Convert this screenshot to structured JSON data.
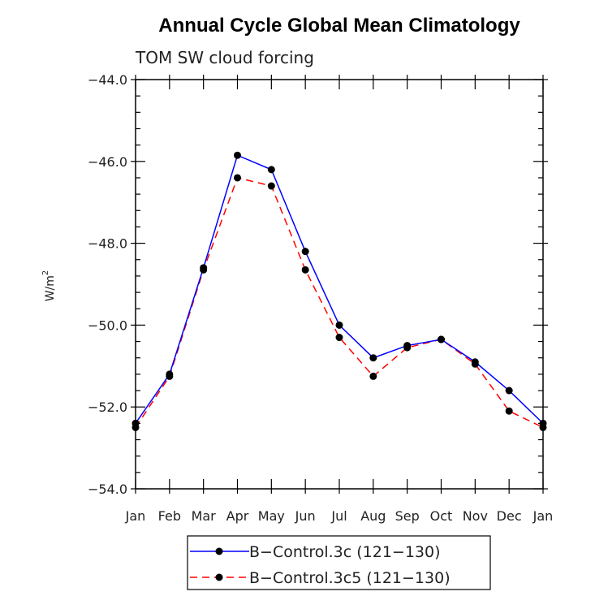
{
  "chart_data": {
    "type": "line",
    "title": "Annual Cycle Global Mean Climatology",
    "subtitle": "TOM SW cloud forcing",
    "ylabel_base": "W/m",
    "ylabel_sup": "2",
    "xlabel": "",
    "categories": [
      "Jan",
      "Feb",
      "Mar",
      "Apr",
      "May",
      "Jun",
      "Jul",
      "Aug",
      "Sep",
      "Oct",
      "Nov",
      "Dec",
      "Jan"
    ],
    "ylim": [
      -54.0,
      -44.0
    ],
    "yticks": [
      -44.0,
      -46.0,
      -48.0,
      -50.0,
      -52.0,
      -54.0
    ],
    "ytick_labels": [
      "−44.0",
      "−46.0",
      "−48.0",
      "−50.0",
      "−52.0",
      "−54.0"
    ],
    "grid": false,
    "legend_position": "bottom",
    "series": [
      {
        "name": "B−Control.3c (121−130)",
        "color": "#0000ff",
        "dash": "solid",
        "values": [
          -52.4,
          -51.2,
          -48.6,
          -45.85,
          -46.2,
          -48.2,
          -50.0,
          -50.8,
          -50.5,
          -50.35,
          -50.9,
          -51.6,
          -52.4
        ]
      },
      {
        "name": "B−Control.3c5 (121−130)",
        "color": "#ff0000",
        "dash": "dashed",
        "values": [
          -52.5,
          -51.25,
          -48.65,
          -46.4,
          -46.6,
          -48.65,
          -50.3,
          -51.25,
          -50.55,
          -50.35,
          -50.95,
          -52.1,
          -52.5
        ]
      }
    ]
  }
}
